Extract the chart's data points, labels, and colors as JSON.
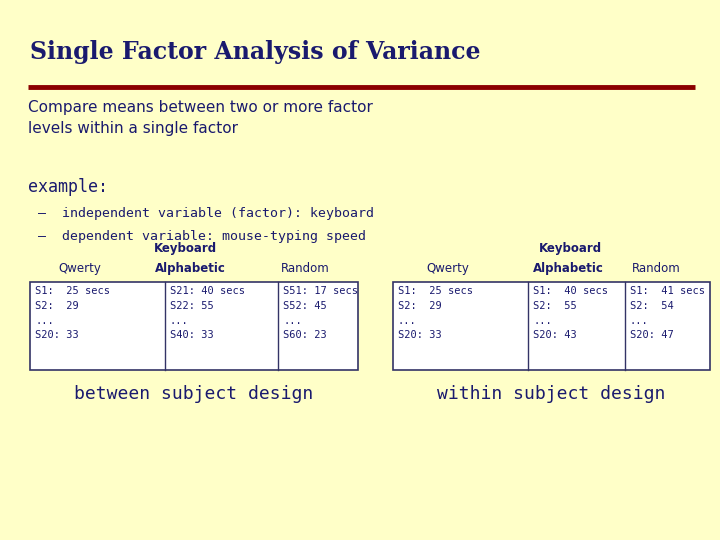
{
  "bg_color": "#FFFFC8",
  "title": "Single Factor Analysis of Variance",
  "title_color": "#1a1a6e",
  "title_fontsize": 17,
  "line_color": "#8B0000",
  "body_text_1": "Compare means between two or more factor\nlevels within a single factor",
  "body_text_fontsize": 11,
  "body_text_color": "#1a1a6e",
  "example_label": "example:",
  "example_fontsize": 12,
  "bullet_1": "–  independent variable (factor): keyboard",
  "bullet_2": "–  dependent variable: mouse-typing speed",
  "bullet_fontsize": 9.5,
  "keyboard_label": "Keyboard",
  "col_headers_left": [
    "Qwerty",
    "Alphabetic",
    "Random"
  ],
  "col_headers_right": [
    "Qwerty",
    "Alphabetic",
    "Random"
  ],
  "left_cell_1": "S1:  25 secs\nS2:  29\n...\nS20: 33",
  "left_cell_2": "S21: 40 secs\nS22: 55\n...\nS40: 33",
  "left_cell_3": "S51: 17 secs\nS52: 45\n...\nS60: 23",
  "right_cell_1": "S1:  25 secs\nS2:  29\n...\nS20: 33",
  "right_cell_2": "S1:  40 secs\nS2:  55\n...\nS20: 43",
  "right_cell_3": "S1:  41 secs\nS2:  54\n...\nS20: 47",
  "left_caption": "between subject design",
  "right_caption": "within subject design",
  "caption_fontsize": 13,
  "table_text_color": "#1a1a6e",
  "header_fontsize": 8.5,
  "cell_fontsize": 7.5
}
